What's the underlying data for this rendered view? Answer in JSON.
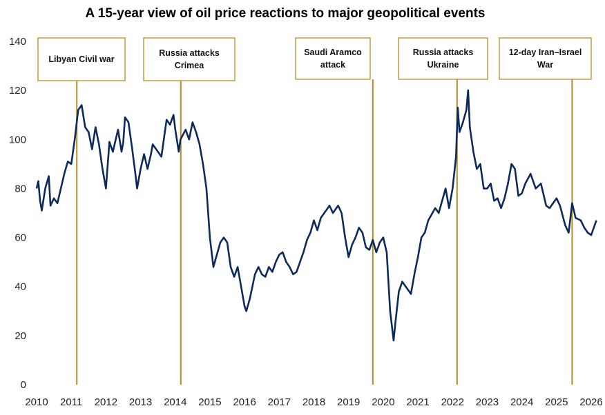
{
  "chart_data": {
    "type": "line",
    "title": "A 15-year view of oil price reactions to major geopolitical events",
    "xlabel": "",
    "ylabel": "",
    "xlim": [
      2010,
      2026.2
    ],
    "ylim": [
      0,
      140
    ],
    "x_ticks": [
      "2010",
      "2011",
      "2012",
      "2013",
      "2014",
      "2015",
      "2016",
      "2017",
      "2018",
      "2019",
      "2020",
      "2021",
      "2022",
      "2023",
      "2024",
      "2025",
      "2026"
    ],
    "y_ticks": [
      "0",
      "20",
      "40",
      "60",
      "80",
      "100",
      "120",
      "140"
    ],
    "grid": false,
    "colors": {
      "line": "#0d2a5c",
      "event": "#b58b25"
    },
    "series": [
      {
        "x": [
          2010.0,
          2010.05,
          2010.1,
          2010.15,
          2010.25,
          2010.35,
          2010.4,
          2010.5,
          2010.6,
          2010.7,
          2010.8,
          2010.9,
          2011.0,
          2011.1,
          2011.2,
          2011.3,
          2011.4,
          2011.5,
          2011.6,
          2011.7,
          2011.8,
          2011.9,
          2012.0,
          2012.1,
          2012.2,
          2012.35,
          2012.45,
          2012.5,
          2012.55,
          2012.65,
          2012.75,
          2012.85,
          2012.9,
          2013.0,
          2013.1,
          2013.2,
          2013.3,
          2013.35,
          2013.5,
          2013.6,
          2013.7,
          2013.75,
          2013.85,
          2013.95,
          2014.0,
          2014.1,
          2014.15,
          2014.3,
          2014.4,
          2014.5,
          2014.6,
          2014.7,
          2014.8,
          2014.9,
          2015.0,
          2015.1,
          2015.2,
          2015.3,
          2015.4,
          2015.5,
          2015.6,
          2015.7,
          2015.8,
          2015.9,
          2016.0,
          2016.05,
          2016.15,
          2016.3,
          2016.4,
          2016.5,
          2016.6,
          2016.7,
          2016.8,
          2016.9,
          2017.0,
          2017.1,
          2017.2,
          2017.3,
          2017.4,
          2017.5,
          2017.6,
          2017.7,
          2017.8,
          2017.9,
          2018.0,
          2018.1,
          2018.2,
          2018.35,
          2018.45,
          2018.55,
          2018.7,
          2018.8,
          2018.9,
          2019.0,
          2019.1,
          2019.2,
          2019.3,
          2019.4,
          2019.5,
          2019.6,
          2019.7,
          2019.8,
          2019.9,
          2020.0,
          2020.1,
          2020.2,
          2020.3,
          2020.35,
          2020.45,
          2020.55,
          2020.65,
          2020.8,
          2020.9,
          2021.0,
          2021.1,
          2021.2,
          2021.3,
          2021.5,
          2021.6,
          2021.8,
          2021.9,
          2022.0,
          2022.1,
          2022.15,
          2022.2,
          2022.3,
          2022.4,
          2022.45,
          2022.5,
          2022.6,
          2022.7,
          2022.8,
          2022.9,
          2023.0,
          2023.1,
          2023.2,
          2023.3,
          2023.4,
          2023.5,
          2023.6,
          2023.7,
          2023.8,
          2023.9,
          2024.0,
          2024.1,
          2024.25,
          2024.4,
          2024.55,
          2024.7,
          2024.8,
          2024.9,
          2025.0,
          2025.1,
          2025.25,
          2025.35,
          2025.45,
          2025.55,
          2025.7,
          2025.8,
          2025.9,
          2026.0,
          2026.1,
          2026.15
        ],
        "y": [
          80,
          83,
          75,
          71,
          80,
          85,
          73,
          76,
          74,
          80,
          86,
          91,
          90,
          100,
          112,
          114,
          105,
          103,
          96,
          105,
          98,
          88,
          80,
          99,
          95,
          104,
          95,
          99,
          109,
          107,
          97,
          86,
          80,
          88,
          94,
          88,
          94,
          98,
          95,
          93,
          103,
          108,
          106,
          110,
          104,
          95,
          100,
          104,
          100,
          107,
          103,
          98,
          90,
          80,
          60,
          48,
          53,
          58,
          60,
          58,
          48,
          44,
          48,
          40,
          32,
          30,
          35,
          45,
          48,
          45,
          44,
          48,
          46,
          50,
          53,
          54,
          50,
          48,
          45,
          46,
          50,
          54,
          59,
          62,
          67,
          63,
          68,
          71,
          73,
          70,
          73,
          70,
          60,
          52,
          57,
          60,
          64,
          62,
          56,
          55,
          59,
          54,
          58,
          60,
          54,
          30,
          18,
          25,
          38,
          42,
          40,
          37,
          45,
          52,
          60,
          62,
          67,
          72,
          70,
          80,
          72,
          80,
          93,
          113,
          103,
          107,
          112,
          120,
          105,
          95,
          88,
          90,
          80,
          80,
          82,
          75,
          76,
          72,
          76,
          82,
          90,
          88,
          77,
          78,
          82,
          86,
          80,
          82,
          73,
          72,
          74,
          76,
          73,
          65,
          62,
          74,
          68,
          67,
          64,
          62,
          61,
          65,
          67
        ]
      }
    ],
    "annotations": [
      {
        "x": 2011.16,
        "lines": [
          "Libyan Civil war"
        ]
      },
      {
        "x": 2014.16,
        "lines": [
          "Russia attacks",
          "Crimea"
        ]
      },
      {
        "x": 2019.7,
        "lines": [
          "Saudi Aramco",
          "attack"
        ]
      },
      {
        "x": 2022.13,
        "lines": [
          "Russia attacks",
          "Ukraine"
        ]
      },
      {
        "x": 2025.45,
        "lines": [
          "12-day Iran–Israel",
          "War"
        ]
      }
    ]
  }
}
